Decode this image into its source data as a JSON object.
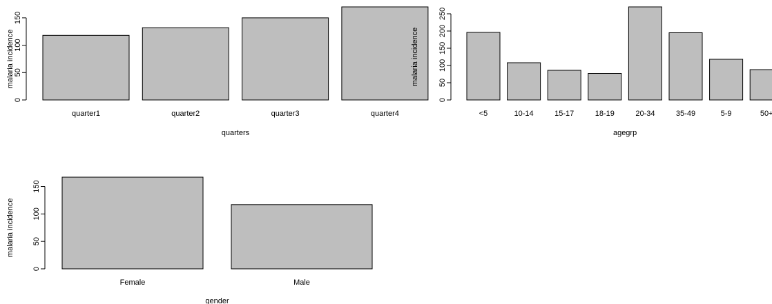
{
  "chart_data": [
    {
      "type": "bar",
      "xlabel": "quarters",
      "ylabel": "malaria incidence",
      "categories": [
        "quarter1",
        "quarter2",
        "quarter3",
        "quarter4"
      ],
      "values": [
        118,
        132,
        150,
        170
      ],
      "yticks": [
        0,
        50,
        100,
        150
      ],
      "ylim": [
        0,
        170
      ],
      "grid": false,
      "bar_color": "#bebebe"
    },
    {
      "type": "bar",
      "xlabel": "agegrp",
      "ylabel": "malaria incidence",
      "categories": [
        "<5",
        "10-14",
        "15-17",
        "18-19",
        "20-34",
        "35-49",
        "5-9",
        "50+"
      ],
      "values": [
        196,
        108,
        86,
        77,
        270,
        195,
        118,
        88
      ],
      "yticks": [
        0,
        50,
        100,
        150,
        200,
        250
      ],
      "ylim": [
        0,
        270
      ],
      "grid": false,
      "bar_color": "#bebebe"
    },
    {
      "type": "bar",
      "xlabel": "gender",
      "ylabel": "malaria incidence",
      "categories": [
        "Female",
        "Male"
      ],
      "values": [
        167,
        117
      ],
      "yticks": [
        0,
        50,
        100,
        150
      ],
      "ylim": [
        0,
        167
      ],
      "grid": false,
      "bar_color": "#bebebe"
    }
  ]
}
